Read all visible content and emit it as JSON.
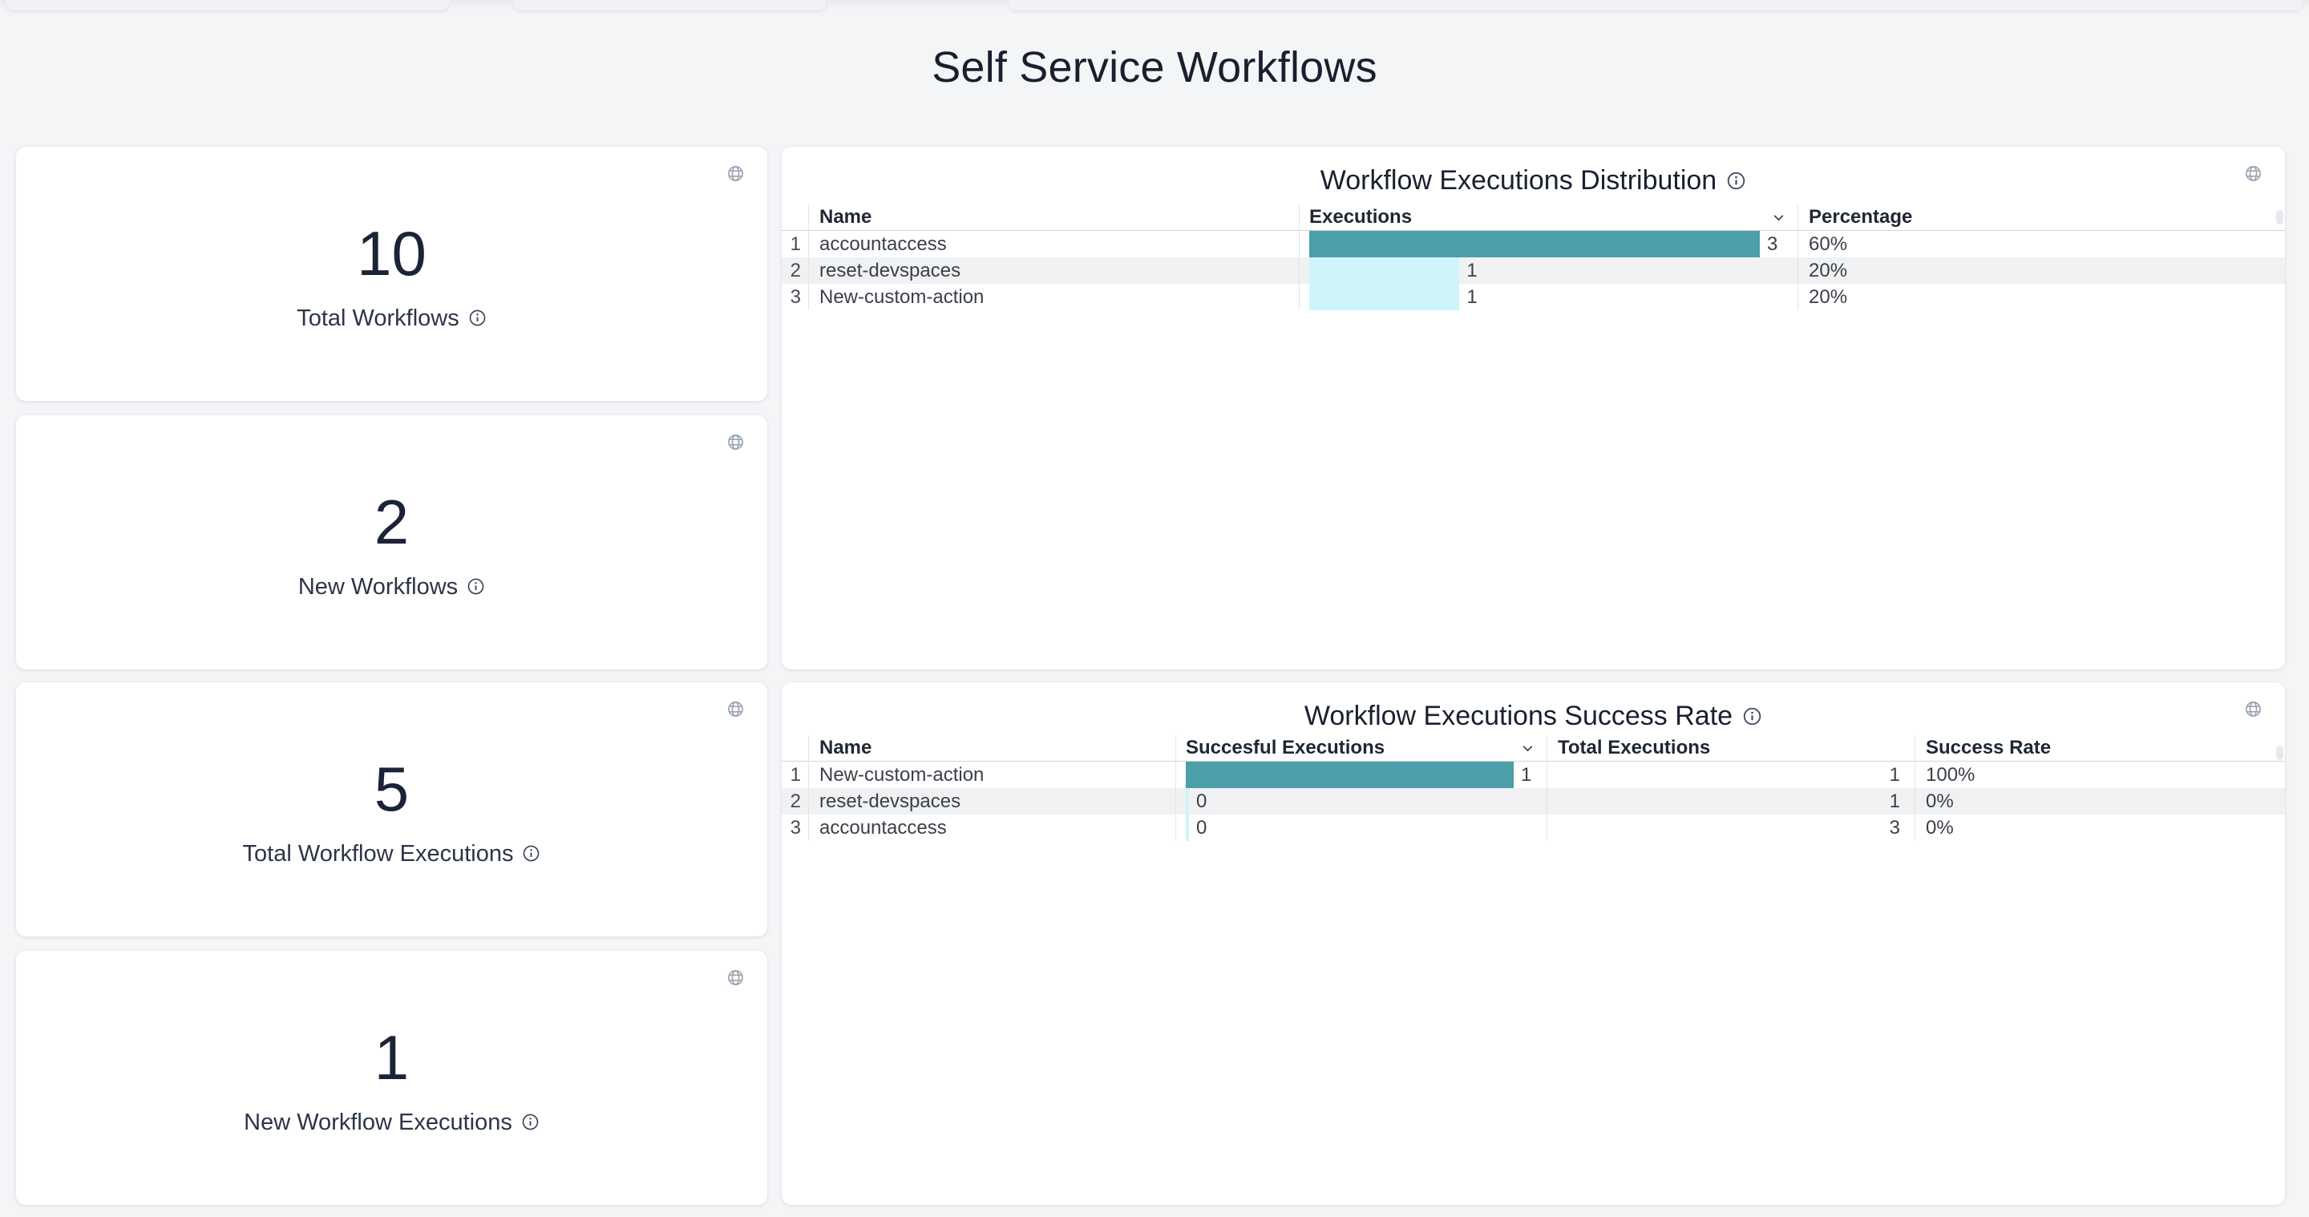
{
  "page_title": "Self Service Workflows",
  "stat_cards": [
    {
      "value": "10",
      "label": "Total Workflows"
    },
    {
      "value": "2",
      "label": "New Workflows"
    },
    {
      "value": "5",
      "label": "Total Workflow Executions"
    },
    {
      "value": "1",
      "label": "New Workflow Executions"
    }
  ],
  "tables": {
    "distribution": {
      "title": "Workflow Executions Distribution",
      "columns": {
        "name": "Name",
        "executions": "Executions",
        "percentage": "Percentage"
      },
      "sort": {
        "column": "Executions",
        "direction": "desc"
      },
      "max_value": 3,
      "rows": [
        {
          "index": "1",
          "name": "accountaccess",
          "executions": 3,
          "percentage": "60%",
          "bar_color": "#4a9fa8"
        },
        {
          "index": "2",
          "name": "reset-devspaces",
          "executions": 1,
          "percentage": "20%",
          "bar_color": "#cff5fa"
        },
        {
          "index": "3",
          "name": "New-custom-action",
          "executions": 1,
          "percentage": "20%",
          "bar_color": "#cff5fa"
        }
      ]
    },
    "success_rate": {
      "title": "Workflow Executions Success Rate",
      "columns": {
        "name": "Name",
        "successful": "Succesful Executions",
        "total": "Total Executions",
        "rate": "Success Rate"
      },
      "sort": {
        "column": "Succesful Executions",
        "direction": "desc"
      },
      "max_value": 1,
      "rows": [
        {
          "index": "1",
          "name": "New-custom-action",
          "successful": 1,
          "total": "1",
          "rate": "100%",
          "bar_color": "#4a9fa8"
        },
        {
          "index": "2",
          "name": "reset-devspaces",
          "successful": 0,
          "total": "1",
          "rate": "0%",
          "bar_color": "#cff5fa"
        },
        {
          "index": "3",
          "name": "accountaccess",
          "successful": 0,
          "total": "3",
          "rate": "0%",
          "bar_color": "#cff5fa"
        }
      ]
    }
  },
  "colors": {
    "background": "#f4f5f7",
    "card": "#ffffff",
    "bar_primary": "#4a9fa8",
    "bar_secondary": "#cff5fa",
    "title_text": "#18202f"
  }
}
